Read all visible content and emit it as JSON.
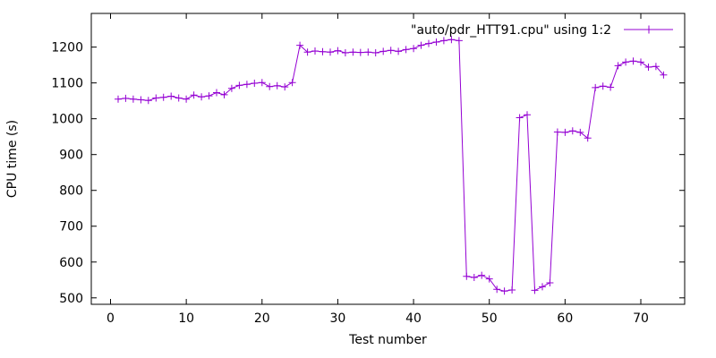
{
  "chart_data": {
    "type": "line",
    "title": "",
    "xlabel": "Test number",
    "ylabel": "CPU time (s)",
    "legend": {
      "label": "\"auto/pdr_HTT91.cpu\" using 1:2",
      "position": "top-right"
    },
    "line_color": "#9400d3",
    "axis_color": "#000000",
    "marker": "plus",
    "grid": false,
    "x_ticks": [
      0,
      10,
      20,
      30,
      40,
      50,
      60,
      70
    ],
    "y_ticks": [
      500,
      600,
      700,
      800,
      900,
      1000,
      1100,
      1200
    ],
    "xlim": [
      -2.54,
      75.79
    ],
    "ylim": [
      482,
      1294
    ],
    "series": [
      {
        "name": "\"auto/pdr_HTT91.cpu\" using 1:2",
        "x": [
          1,
          2,
          3,
          4,
          5,
          6,
          7,
          8,
          9,
          10,
          11,
          12,
          13,
          14,
          15,
          16,
          17,
          18,
          19,
          20,
          21,
          22,
          23,
          24,
          25,
          26,
          27,
          28,
          29,
          30,
          31,
          32,
          33,
          34,
          35,
          36,
          37,
          38,
          39,
          40,
          41,
          42,
          43,
          44,
          45,
          46,
          47,
          48,
          49,
          50,
          51,
          52,
          53,
          54,
          55,
          56,
          57,
          58,
          59,
          60,
          61,
          62,
          63,
          64,
          65,
          66,
          67,
          68,
          69,
          70,
          71,
          72,
          73
        ],
        "y": [
          1055,
          1057,
          1055,
          1053,
          1051,
          1058,
          1060,
          1063,
          1058,
          1055,
          1066,
          1061,
          1064,
          1073,
          1067,
          1085,
          1093,
          1096,
          1099,
          1101,
          1090,
          1092,
          1089,
          1101,
          1205,
          1186,
          1189,
          1187,
          1186,
          1190,
          1184,
          1186,
          1185,
          1186,
          1184,
          1188,
          1191,
          1188,
          1193,
          1196,
          1205,
          1210,
          1214,
          1218,
          1221,
          1218,
          560,
          557,
          563,
          553,
          524,
          519,
          522,
          1003,
          1011,
          521,
          531,
          542,
          963,
          962,
          966,
          962,
          946,
          1087,
          1091,
          1088,
          1148,
          1158,
          1161,
          1158,
          1144,
          1146,
          1122
        ]
      }
    ]
  }
}
